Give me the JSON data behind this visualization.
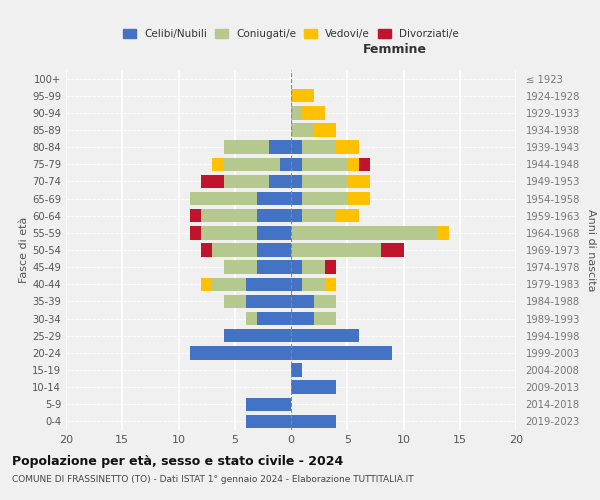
{
  "age_groups": [
    "0-4",
    "5-9",
    "10-14",
    "15-19",
    "20-24",
    "25-29",
    "30-34",
    "35-39",
    "40-44",
    "45-49",
    "50-54",
    "55-59",
    "60-64",
    "65-69",
    "70-74",
    "75-79",
    "80-84",
    "85-89",
    "90-94",
    "95-99",
    "100+"
  ],
  "birth_years": [
    "2019-2023",
    "2014-2018",
    "2009-2013",
    "2004-2008",
    "1999-2003",
    "1994-1998",
    "1989-1993",
    "1984-1988",
    "1979-1983",
    "1974-1978",
    "1969-1973",
    "1964-1968",
    "1959-1963",
    "1954-1958",
    "1949-1953",
    "1944-1948",
    "1939-1943",
    "1934-1938",
    "1929-1933",
    "1924-1928",
    "≤ 1923"
  ],
  "male": {
    "celibi": [
      4,
      4,
      0,
      0,
      9,
      6,
      3,
      4,
      4,
      3,
      3,
      3,
      3,
      3,
      2,
      1,
      2,
      0,
      0,
      0,
      0
    ],
    "coniugati": [
      0,
      0,
      0,
      0,
      0,
      0,
      1,
      2,
      3,
      3,
      4,
      5,
      5,
      6,
      4,
      5,
      4,
      0,
      0,
      0,
      0
    ],
    "vedovi": [
      0,
      0,
      0,
      0,
      0,
      0,
      0,
      0,
      1,
      0,
      0,
      0,
      0,
      0,
      0,
      1,
      0,
      0,
      0,
      0,
      0
    ],
    "divorziati": [
      0,
      0,
      0,
      0,
      0,
      0,
      0,
      0,
      0,
      0,
      1,
      1,
      1,
      0,
      2,
      0,
      0,
      0,
      0,
      0,
      0
    ]
  },
  "female": {
    "nubili": [
      4,
      0,
      4,
      1,
      9,
      6,
      2,
      2,
      1,
      1,
      0,
      0,
      1,
      1,
      1,
      1,
      1,
      0,
      0,
      0,
      0
    ],
    "coniugate": [
      0,
      0,
      0,
      0,
      0,
      0,
      2,
      2,
      2,
      2,
      8,
      13,
      3,
      4,
      4,
      4,
      3,
      2,
      1,
      0,
      0
    ],
    "vedove": [
      0,
      0,
      0,
      0,
      0,
      0,
      0,
      0,
      1,
      0,
      0,
      1,
      2,
      2,
      2,
      1,
      2,
      2,
      2,
      2,
      0
    ],
    "divorziate": [
      0,
      0,
      0,
      0,
      0,
      0,
      0,
      0,
      0,
      1,
      2,
      0,
      0,
      0,
      0,
      1,
      0,
      0,
      0,
      0,
      0
    ]
  },
  "colors": {
    "celibi_nubili": "#4472c4",
    "coniugati": "#b5c98e",
    "vedovi": "#ffc000",
    "divorziati": "#c0142c"
  },
  "xlim": 20,
  "title": "Popolazione per età, sesso e stato civile - 2024",
  "subtitle": "COMUNE DI FRASSINETTO (TO) - Dati ISTAT 1° gennaio 2024 - Elaborazione TUTTITALIA.IT",
  "ylabel_left": "Fasce di età",
  "ylabel_right": "Anni di nascita",
  "xlabel_femmine": "Femmine",
  "legend_labels": [
    "Celibi/Nubili",
    "Coniugati/e",
    "Vedovi/e",
    "Divorziati/e"
  ],
  "bg_color": "#f0f0f0"
}
